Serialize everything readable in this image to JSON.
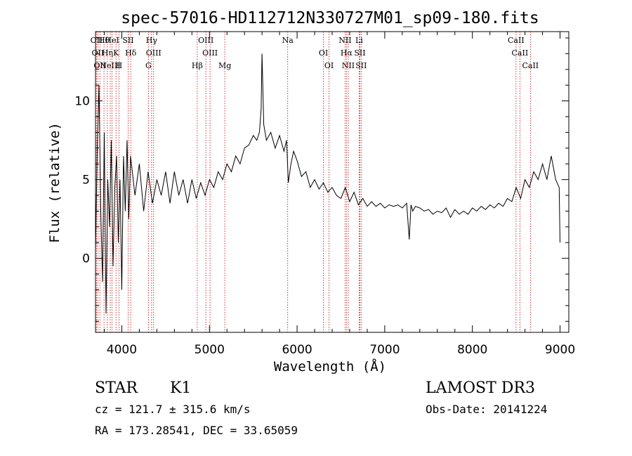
{
  "chart_data": {
    "type": "line",
    "title": "spec-57016-HD112712N330727M01_sp09-180.fits",
    "xlabel": "Wavelength (Å)",
    "ylabel": "Flux (relative)",
    "xlim": [
      3700,
      9100
    ],
    "ylim": [
      -4.7,
      14.4
    ],
    "xticks": [
      4000,
      5000,
      6000,
      7000,
      8000,
      9000
    ],
    "yticks": [
      0,
      5,
      10
    ],
    "grid": false,
    "legend": "none",
    "line_color": "#000000",
    "marker_color": "#cc0000",
    "series": [
      {
        "x": [
          3700,
          3720,
          3740,
          3760,
          3780,
          3800,
          3820,
          3840,
          3860,
          3880,
          3900,
          3920,
          3940,
          3960,
          3980,
          4000,
          4020,
          4040,
          4060,
          4080,
          4100,
          4150,
          4200,
          4250,
          4300,
          4350,
          4400,
          4450,
          4500,
          4550,
          4600,
          4650,
          4700,
          4750,
          4800,
          4850,
          4900,
          4950,
          5000,
          5050,
          5100,
          5150,
          5200,
          5250,
          5300,
          5350,
          5400,
          5450,
          5500,
          5540,
          5570,
          5590,
          5600,
          5620,
          5650,
          5700,
          5750,
          5800,
          5850,
          5880,
          5900,
          5930,
          5960,
          6000,
          6050,
          6100,
          6150,
          6200,
          6250,
          6300,
          6350,
          6400,
          6450,
          6500,
          6550,
          6600,
          6650,
          6700,
          6750,
          6800,
          6850,
          6900,
          6950,
          7000,
          7050,
          7100,
          7150,
          7200,
          7250,
          7280,
          7300,
          7320,
          7350,
          7400,
          7450,
          7500,
          7550,
          7600,
          7650,
          7700,
          7750,
          7800,
          7850,
          7900,
          7950,
          8000,
          8050,
          8100,
          8150,
          8200,
          8250,
          8300,
          8350,
          8400,
          8450,
          8500,
          8550,
          8600,
          8650,
          8700,
          8750,
          8800,
          8850,
          8900,
          8950,
          8990,
          9000
        ],
        "y": [
          0.5,
          7.0,
          11.0,
          3.0,
          -1.5,
          8.0,
          -3.5,
          5.0,
          2.0,
          7.5,
          -0.5,
          4.5,
          6.5,
          1.0,
          5.0,
          -2.0,
          6.5,
          3.0,
          7.5,
          2.5,
          6.5,
          4.0,
          6.0,
          3.0,
          5.5,
          3.5,
          5.0,
          4.0,
          5.5,
          3.5,
          5.5,
          4.0,
          5.0,
          3.5,
          5.0,
          3.8,
          4.8,
          4.0,
          5.0,
          4.5,
          5.5,
          5.0,
          6.0,
          5.5,
          6.5,
          6.0,
          7.0,
          7.2,
          7.8,
          7.5,
          8.0,
          9.5,
          13.0,
          8.5,
          7.5,
          8.0,
          7.0,
          7.8,
          6.8,
          7.5,
          4.8,
          6.0,
          6.8,
          6.2,
          5.2,
          5.5,
          4.5,
          5.0,
          4.4,
          4.8,
          4.2,
          4.5,
          4.0,
          3.8,
          4.5,
          3.6,
          4.2,
          3.4,
          3.8,
          3.3,
          3.6,
          3.3,
          3.5,
          3.2,
          3.4,
          3.3,
          3.4,
          3.2,
          3.5,
          1.2,
          3.4,
          3.0,
          3.3,
          3.2,
          3.0,
          3.1,
          2.8,
          3.0,
          2.9,
          3.2,
          2.6,
          3.1,
          2.8,
          3.0,
          2.8,
          3.2,
          3.0,
          3.3,
          3.1,
          3.4,
          3.2,
          3.5,
          3.3,
          3.8,
          3.6,
          4.5,
          3.8,
          5.0,
          4.5,
          5.5,
          5.0,
          6.0,
          5.0,
          6.5,
          5.0,
          4.5,
          1.0
        ]
      }
    ],
    "lines": [
      {
        "wl": 3712,
        "label": "OII"
      },
      {
        "wl": 3727,
        "label": "OII"
      },
      {
        "wl": 3750,
        "label": "OII"
      },
      {
        "wl": 3797,
        "label": "Hθ"
      },
      {
        "wl": 3835,
        "label": "Hη"
      },
      {
        "wl": 3868,
        "label": "NeIII"
      },
      {
        "wl": 3889,
        "label": "HeI"
      },
      {
        "wl": 3934,
        "label": "K"
      },
      {
        "wl": 3968,
        "label": "H"
      },
      {
        "wl": 4072,
        "label": "SII"
      },
      {
        "wl": 4102,
        "label": "Hδ"
      },
      {
        "wl": 4304,
        "label": "G"
      },
      {
        "wl": 4340,
        "label": "Hγ"
      },
      {
        "wl": 4363,
        "label": "OIII"
      },
      {
        "wl": 4861,
        "label": "Hβ"
      },
      {
        "wl": 4959,
        "label": "OIII"
      },
      {
        "wl": 5007,
        "label": "OIII"
      },
      {
        "wl": 5175,
        "label": "Mg"
      },
      {
        "wl": 5893,
        "label": "Na"
      },
      {
        "wl": 6300,
        "label": "OI"
      },
      {
        "wl": 6364,
        "label": "OI"
      },
      {
        "wl": 6548,
        "label": "NII"
      },
      {
        "wl": 6563,
        "label": "Hα"
      },
      {
        "wl": 6584,
        "label": "NII"
      },
      {
        "wl": 6708,
        "label": "Li"
      },
      {
        "wl": 6716,
        "label": "SII"
      },
      {
        "wl": 6731,
        "label": "SII"
      },
      {
        "wl": 8498,
        "label": "CaII"
      },
      {
        "wl": 8542,
        "label": "CaII"
      },
      {
        "wl": 8662,
        "label": "CaII"
      }
    ]
  },
  "info": {
    "class": "STAR",
    "subclass": "K1",
    "survey": "LAMOST DR3",
    "cz": "cz = 121.7 ± 315.6 km/s",
    "obs_date": "Obs-Date: 20141224",
    "coords": "RA = 173.28541, DEC =  33.65059"
  }
}
